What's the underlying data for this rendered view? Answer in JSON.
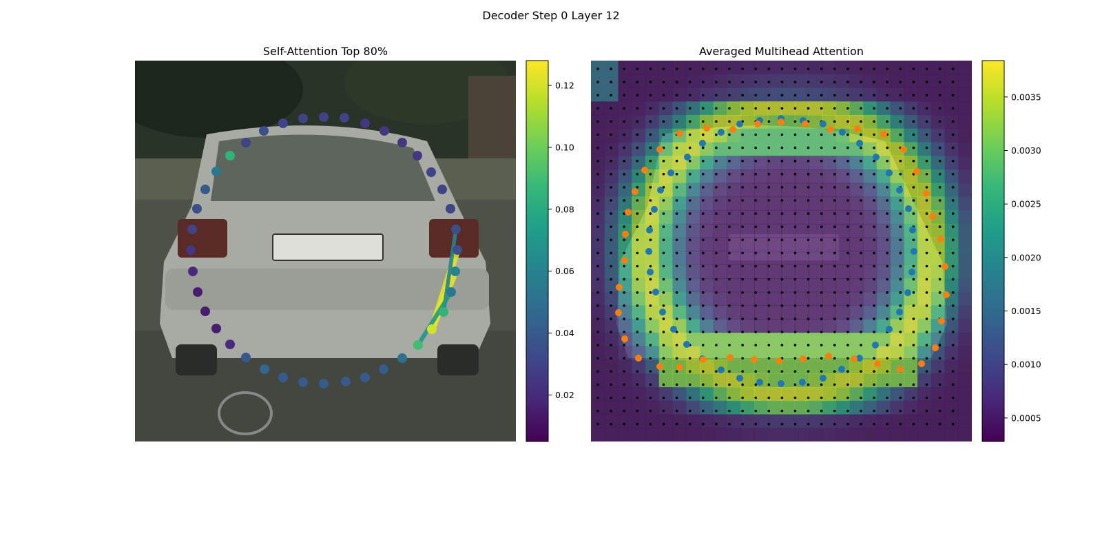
{
  "figure": {
    "suptitle": "Decoder Step 0 Layer 12"
  },
  "colors": {
    "viridis": [
      "#440154",
      "#482878",
      "#3e4989",
      "#31688e",
      "#26828e",
      "#1f9e89",
      "#35b779",
      "#6ece58",
      "#b5de2b",
      "#fde725"
    ],
    "query_points": "#ff7f0e",
    "reference_points": "#1f77b4",
    "grid_dots": "#000000",
    "photo_background": "#4a5046",
    "car_body": "#b2b5ad"
  },
  "chart_data": [
    {
      "type": "scatter",
      "title": "Self-Attention Top 80%",
      "background": "photo-of-car-rear",
      "x": [
        470,
        500,
        530,
        558,
        584,
        606,
        626,
        642,
        654,
        662,
        664,
        661,
        655,
        644,
        627,
        607,
        584,
        557,
        530,
        502,
        470,
        440,
        411,
        384,
        357,
        334,
        314,
        298,
        287,
        280,
        277,
        279,
        286,
        298,
        314,
        334,
        357,
        383,
        411,
        440
      ],
      "y": [
        170,
        171,
        179,
        190,
        207,
        226,
        250,
        275,
        303,
        333,
        363,
        394,
        424,
        453,
        478,
        501,
        520,
        536,
        548,
        554,
        557,
        555,
        548,
        536,
        519,
        500,
        477,
        452,
        424,
        394,
        363,
        333,
        303,
        275,
        249,
        226,
        207,
        190,
        179,
        172
      ],
      "weights": [
        0.03,
        0.03,
        0.025,
        0.025,
        0.025,
        0.025,
        0.03,
        0.03,
        0.03,
        0.035,
        0.035,
        0.06,
        0.055,
        0.085,
        0.12,
        0.09,
        0.05,
        0.04,
        0.04,
        0.04,
        0.04,
        0.04,
        0.04,
        0.045,
        0.04,
        0.02,
        0.015,
        0.015,
        0.015,
        0.02,
        0.025,
        0.03,
        0.035,
        0.04,
        0.055,
        0.085,
        0.03,
        0.035,
        0.03,
        0.03
      ],
      "attention_links": [
        {
          "from": 14,
          "to": 10,
          "weight": 0.122
        },
        {
          "from": 14,
          "to": 11,
          "weight": 0.124
        },
        {
          "from": 13,
          "to": 9,
          "weight": 0.06
        },
        {
          "from": 15,
          "to": 12,
          "weight": 0.07
        }
      ],
      "colorbar": {
        "min": 0.005,
        "max": 0.128,
        "ticks": [
          "0.02",
          "0.04",
          "0.06",
          "0.08",
          "0.10",
          "0.12"
        ],
        "tick_values": [
          0.02,
          0.04,
          0.06,
          0.08,
          0.1,
          0.12
        ],
        "colormap": "viridis"
      }
    },
    {
      "type": "heatmap",
      "title": "Averaged Multihead Attention",
      "background": "photo-of-car-rear",
      "grid_size": 28,
      "overlays": [
        {
          "series": "orange-points",
          "color": "#ff7f0e",
          "x": [
            1134,
            1169,
            1206,
            1245,
            1283,
            1312,
            1331,
            1345,
            1354,
            1366,
            1372,
            1374,
            1367,
            1358,
            1338,
            1307,
            1274,
            1240,
            1203,
            1166,
            1131,
            1095,
            1060,
            1021,
            987,
            958,
            927,
            907,
            898,
            899,
            907,
            908,
            912,
            922,
            936,
            958,
            987,
            1026,
            1064,
            1100
          ],
          "y": [
            177,
            180,
            188,
            187,
            195,
            217,
            249,
            281,
            314,
            347,
            387,
            428,
            466,
            505,
            528,
            536,
            528,
            521,
            517,
            521,
            524,
            522,
            519,
            522,
            533,
            532,
            520,
            492,
            454,
            417,
            378,
            340,
            308,
            278,
            247,
            217,
            194,
            186,
            188,
            180
          ]
        },
        {
          "series": "blue-points",
          "color": "#1f77b4",
          "x": [
            1134,
            1166,
            1195,
            1223,
            1248,
            1272,
            1291,
            1306,
            1319,
            1325,
            1327,
            1324,
            1318,
            1306,
            1291,
            1271,
            1248,
            1222,
            1195,
            1165,
            1134,
            1103,
            1074,
            1047,
            1020,
            997,
            978,
            962,
            952,
            944,
            942,
            943,
            950,
            959,
            974,
            998,
            1020,
            1047,
            1074,
            1103
          ],
          "y": [
            172,
            175,
            180,
            192,
            208,
            228,
            251,
            276,
            303,
            334,
            365,
            395,
            425,
            453,
            478,
            501,
            520,
            536,
            549,
            555,
            557,
            555,
            549,
            537,
            521,
            500,
            478,
            453,
            424,
            395,
            365,
            334,
            304,
            276,
            251,
            228,
            208,
            192,
            180,
            175
          ]
        }
      ],
      "colorbar": {
        "min": 0.00028,
        "max": 0.00384,
        "ticks": [
          "0.0005",
          "0.0010",
          "0.0015",
          "0.0020",
          "0.0025",
          "0.0030",
          "0.0035"
        ],
        "tick_values": [
          0.0005,
          0.001,
          0.0015,
          0.002,
          0.0025,
          0.003,
          0.0035
        ],
        "colormap": "viridis"
      }
    }
  ]
}
